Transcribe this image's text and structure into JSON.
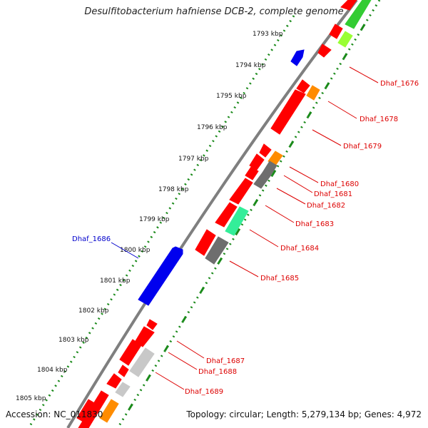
{
  "title": "Desulfitobacterium hafniense DCB-2, complete genome",
  "footer": {
    "accession": "Accession: NC_011830",
    "info": "Topology: circular; Length: 5,279,134 bp; Genes: 4,972"
  },
  "colors": {
    "backbone": "#7f7f7f",
    "dots": "#1a8a1a",
    "red": "#ff0000",
    "blue": "#0000ee",
    "orange": "#ff8c00",
    "gray": "#6e6e6e",
    "lightgray": "#c8c8c8",
    "green": "#33cc33",
    "lime": "#99ff33",
    "teal": "#33ee99",
    "labelRed": "#dd0000",
    "labelBlue": "#0000cc"
  },
  "kbp_ticks": [
    {
      "label": "1793 kbp"
    },
    {
      "label": "1794 kbp"
    },
    {
      "label": "1795 kbp"
    },
    {
      "label": "1796 kbp"
    },
    {
      "label": "1797 kbp"
    },
    {
      "label": "1798 kbp"
    },
    {
      "label": "1799 kbp"
    },
    {
      "label": "1800 kbp"
    },
    {
      "label": "1801 kbp"
    },
    {
      "label": "1802 kbp"
    },
    {
      "label": "1803 kbp"
    },
    {
      "label": "1804 kbp"
    },
    {
      "label": "1805 kbp"
    }
  ],
  "gene_labels": [
    {
      "label": "Dhaf_1676",
      "color": "red"
    },
    {
      "label": "Dhaf_1678",
      "color": "red"
    },
    {
      "label": "Dhaf_1679",
      "color": "red"
    },
    {
      "label": "Dhaf_1680",
      "color": "red"
    },
    {
      "label": "Dhaf_1681",
      "color": "red"
    },
    {
      "label": "Dhaf_1682",
      "color": "red"
    },
    {
      "label": "Dhaf_1683",
      "color": "red"
    },
    {
      "label": "Dhaf_1684",
      "color": "red"
    },
    {
      "label": "Dhaf_1685",
      "color": "red"
    },
    {
      "label": "Dhaf_1686",
      "color": "blue"
    },
    {
      "label": "Dhaf_1687",
      "color": "red"
    },
    {
      "label": "Dhaf_1688",
      "color": "red"
    },
    {
      "label": "Dhaf_1689",
      "color": "red"
    }
  ]
}
